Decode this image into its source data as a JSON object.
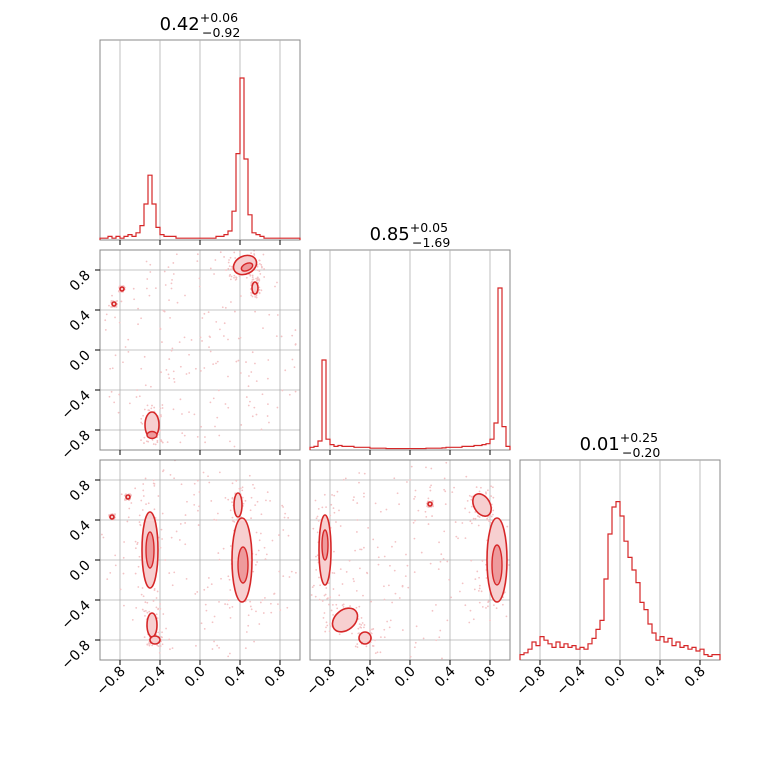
{
  "colors": {
    "line": "#d62728",
    "fill_inner": "#ee9a9c",
    "fill_outer": "#f7cfd0",
    "scatter": "#f3c3c5",
    "grid": "#b0b0b0",
    "frame": "#888888"
  },
  "chart_data": {
    "type": "corner",
    "grid": true,
    "axis_range": [
      -1.0,
      1.0
    ],
    "ticks": [
      -0.8,
      -0.4,
      0.0,
      0.4,
      0.8
    ],
    "tick_labels": [
      "−0.8",
      "−0.4",
      "0.0",
      "0.4",
      "0.8"
    ],
    "parameters": [
      {
        "title_value": "0.42",
        "title_plus": "+0.06",
        "title_minus": "−0.92"
      },
      {
        "title_value": "0.85",
        "title_plus": "+0.05",
        "title_minus": "−1.69"
      },
      {
        "title_value": "0.01",
        "title_plus": "+0.25",
        "title_minus": "−0.20"
      }
    ],
    "histograms": [
      {
        "bins": [
          -0.98,
          -0.94,
          -0.9,
          -0.86,
          -0.82,
          -0.78,
          -0.74,
          -0.7,
          -0.66,
          -0.62,
          -0.58,
          -0.54,
          -0.5,
          -0.46,
          -0.42,
          -0.38,
          -0.34,
          -0.3,
          -0.26,
          -0.22,
          -0.18,
          -0.14,
          -0.1,
          -0.06,
          -0.02,
          0.02,
          0.06,
          0.1,
          0.14,
          0.18,
          0.22,
          0.26,
          0.3,
          0.34,
          0.38,
          0.42,
          0.46,
          0.5,
          0.54,
          0.58,
          0.62,
          0.66,
          0.7,
          0.74,
          0.78,
          0.82,
          0.86,
          0.9,
          0.94,
          0.98
        ],
        "values": [
          0.01,
          0.01,
          0.02,
          0.01,
          0.02,
          0.01,
          0.02,
          0.03,
          0.02,
          0.04,
          0.08,
          0.2,
          0.36,
          0.2,
          0.07,
          0.03,
          0.02,
          0.02,
          0.02,
          0.01,
          0.01,
          0.01,
          0.01,
          0.01,
          0.01,
          0.01,
          0.01,
          0.01,
          0.01,
          0.02,
          0.02,
          0.03,
          0.05,
          0.16,
          0.48,
          0.9,
          0.45,
          0.14,
          0.04,
          0.03,
          0.02,
          0.01,
          0.01,
          0.01,
          0.01,
          0.01,
          0.01,
          0.01,
          0.01,
          0.01
        ],
        "ymax": 1.0
      },
      {
        "bins": [
          -0.98,
          -0.94,
          -0.9,
          -0.86,
          -0.82,
          -0.78,
          -0.74,
          -0.7,
          -0.66,
          -0.62,
          -0.58,
          -0.54,
          -0.5,
          -0.46,
          -0.42,
          -0.38,
          -0.34,
          -0.3,
          -0.26,
          -0.22,
          -0.18,
          -0.14,
          -0.1,
          -0.06,
          -0.02,
          0.02,
          0.06,
          0.1,
          0.14,
          0.18,
          0.22,
          0.26,
          0.3,
          0.34,
          0.38,
          0.42,
          0.46,
          0.5,
          0.54,
          0.58,
          0.62,
          0.66,
          0.7,
          0.74,
          0.78,
          0.82,
          0.86,
          0.9,
          0.94,
          0.98
        ],
        "values": [
          0.015,
          0.02,
          0.05,
          0.5,
          0.06,
          0.03,
          0.02,
          0.025,
          0.02,
          0.02,
          0.02,
          0.015,
          0.015,
          0.015,
          0.015,
          0.01,
          0.01,
          0.01,
          0.01,
          0.008,
          0.008,
          0.008,
          0.008,
          0.008,
          0.008,
          0.008,
          0.008,
          0.008,
          0.008,
          0.01,
          0.01,
          0.01,
          0.01,
          0.012,
          0.015,
          0.015,
          0.015,
          0.015,
          0.02,
          0.02,
          0.02,
          0.025,
          0.025,
          0.03,
          0.035,
          0.06,
          0.15,
          0.9,
          0.13,
          0.02
        ],
        "ymax": 1.0
      },
      {
        "bins": [
          -0.98,
          -0.94,
          -0.9,
          -0.86,
          -0.82,
          -0.78,
          -0.74,
          -0.7,
          -0.66,
          -0.62,
          -0.58,
          -0.54,
          -0.5,
          -0.46,
          -0.42,
          -0.38,
          -0.34,
          -0.3,
          -0.26,
          -0.22,
          -0.18,
          -0.14,
          -0.1,
          -0.06,
          -0.02,
          0.02,
          0.06,
          0.1,
          0.14,
          0.18,
          0.22,
          0.26,
          0.3,
          0.34,
          0.38,
          0.42,
          0.46,
          0.5,
          0.54,
          0.58,
          0.62,
          0.66,
          0.7,
          0.74,
          0.78,
          0.82,
          0.86,
          0.9,
          0.94,
          0.98
        ],
        "values": [
          0.03,
          0.04,
          0.06,
          0.1,
          0.08,
          0.13,
          0.11,
          0.09,
          0.07,
          0.1,
          0.07,
          0.09,
          0.07,
          0.08,
          0.06,
          0.07,
          0.06,
          0.09,
          0.12,
          0.17,
          0.22,
          0.45,
          0.7,
          0.85,
          0.88,
          0.8,
          0.66,
          0.57,
          0.5,
          0.43,
          0.32,
          0.28,
          0.2,
          0.15,
          0.11,
          0.13,
          0.1,
          0.12,
          0.08,
          0.1,
          0.07,
          0.08,
          0.06,
          0.07,
          0.05,
          0.06,
          0.03,
          0.02,
          0.03,
          0.03
        ],
        "ymax": 1.0
      }
    ],
    "pairs": [
      {
        "x_param": 0,
        "y_param": 1,
        "regions": [
          {
            "cx": 0.45,
            "cy": 0.85,
            "rx": 0.12,
            "ry": 0.09,
            "rot": -25
          },
          {
            "cx": -0.48,
            "cy": -0.75,
            "rx": 0.07,
            "ry": 0.13,
            "rot": 0
          },
          {
            "cx": -0.86,
            "cy": 0.46,
            "rx": 0.02,
            "ry": 0.02,
            "rot": 0
          },
          {
            "cx": -0.78,
            "cy": 0.61,
            "rx": 0.02,
            "ry": 0.02,
            "rot": 0
          },
          {
            "cx": 0.55,
            "cy": 0.62,
            "rx": 0.03,
            "ry": 0.06,
            "rot": 0
          }
        ],
        "cores": [
          {
            "cx": 0.47,
            "cy": 0.83,
            "rx": 0.06,
            "ry": 0.035,
            "rot": -25
          },
          {
            "cx": -0.48,
            "cy": -0.85,
            "rx": 0.05,
            "ry": 0.035,
            "rot": 0
          }
        ]
      },
      {
        "x_param": 0,
        "y_param": 2,
        "regions": [
          {
            "cx": -0.5,
            "cy": 0.1,
            "rx": 0.08,
            "ry": 0.38,
            "rot": 0
          },
          {
            "cx": 0.42,
            "cy": 0.0,
            "rx": 0.1,
            "ry": 0.42,
            "rot": 0
          },
          {
            "cx": -0.48,
            "cy": -0.65,
            "rx": 0.05,
            "ry": 0.12,
            "rot": 0
          },
          {
            "cx": 0.38,
            "cy": 0.55,
            "rx": 0.04,
            "ry": 0.12,
            "rot": 0
          },
          {
            "cx": -0.45,
            "cy": -0.8,
            "rx": 0.05,
            "ry": 0.04,
            "rot": 0
          },
          {
            "cx": -0.88,
            "cy": 0.43,
            "rx": 0.02,
            "ry": 0.02,
            "rot": 0
          },
          {
            "cx": -0.72,
            "cy": 0.63,
            "rx": 0.02,
            "ry": 0.02,
            "rot": 0
          }
        ],
        "cores": [
          {
            "cx": -0.5,
            "cy": 0.1,
            "rx": 0.04,
            "ry": 0.18,
            "rot": 0
          },
          {
            "cx": 0.43,
            "cy": -0.05,
            "rx": 0.05,
            "ry": 0.18,
            "rot": 0
          }
        ]
      },
      {
        "x_param": 1,
        "y_param": 2,
        "regions": [
          {
            "cx": 0.87,
            "cy": 0.0,
            "rx": 0.1,
            "ry": 0.42,
            "rot": 0
          },
          {
            "cx": 0.72,
            "cy": 0.55,
            "rx": 0.08,
            "ry": 0.12,
            "rot": -30
          },
          {
            "cx": -0.85,
            "cy": 0.1,
            "rx": 0.06,
            "ry": 0.35,
            "rot": 0
          },
          {
            "cx": -0.65,
            "cy": -0.6,
            "rx": 0.14,
            "ry": 0.1,
            "rot": -40
          },
          {
            "cx": -0.45,
            "cy": -0.78,
            "rx": 0.06,
            "ry": 0.06,
            "rot": 0
          },
          {
            "cx": 0.2,
            "cy": 0.56,
            "rx": 0.02,
            "ry": 0.02,
            "rot": 0
          }
        ],
        "cores": [
          {
            "cx": 0.87,
            "cy": -0.05,
            "rx": 0.05,
            "ry": 0.2,
            "rot": 0
          },
          {
            "cx": -0.85,
            "cy": 0.15,
            "rx": 0.03,
            "ry": 0.15,
            "rot": 0
          }
        ]
      }
    ]
  }
}
